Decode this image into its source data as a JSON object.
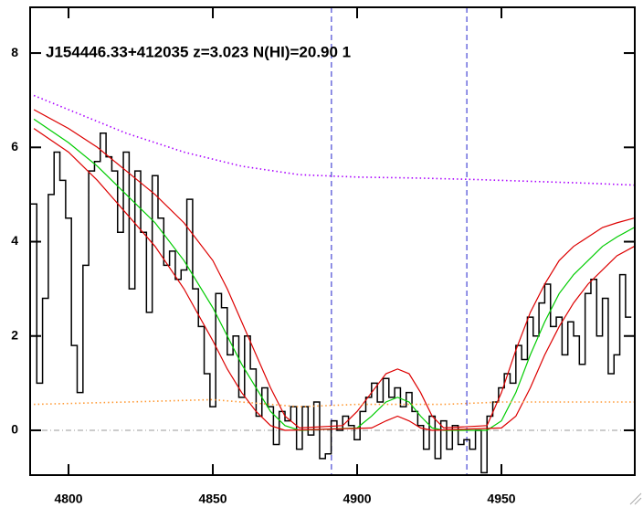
{
  "chart_data": {
    "type": "line",
    "title": "J154446.33+412035 z=3.023 N(HI)=20.90 1",
    "xlim": [
      4786.7,
      4996.2
    ],
    "ylim": [
      -0.95,
      8.97
    ],
    "xticks": [
      4800,
      4850,
      4900,
      4950
    ],
    "yticks": [
      0,
      2,
      4,
      6,
      8
    ],
    "hlines": [
      0
    ],
    "hline_color": "#999999",
    "vlines": [
      4891.1,
      4938.0
    ],
    "vline_color": "#2222cc",
    "series": [
      {
        "color": "#000000",
        "style": "step",
        "x": [
          4788,
          4790,
          4792,
          4794,
          4796,
          4798,
          4800,
          4802,
          4804,
          4806,
          4808,
          4810,
          4812,
          4814,
          4816,
          4818,
          4820,
          4822,
          4824,
          4826,
          4828,
          4830,
          4832,
          4834,
          4836,
          4838,
          4840,
          4842,
          4844,
          4846,
          4848,
          4850,
          4852,
          4854,
          4856,
          4858,
          4860,
          4862,
          4864,
          4866,
          4868,
          4870,
          4872,
          4874,
          4876,
          4878,
          4880,
          4882,
          4884,
          4886,
          4888,
          4890,
          4892,
          4894,
          4896,
          4898,
          4900,
          4902,
          4904,
          4906,
          4908,
          4910,
          4912,
          4914,
          4916,
          4918,
          4920,
          4922,
          4924,
          4926,
          4928,
          4930,
          4932,
          4934,
          4936,
          4938,
          4940,
          4942,
          4944,
          4946,
          4948,
          4950,
          4952,
          4954,
          4956,
          4958,
          4960,
          4962,
          4964,
          4966,
          4968,
          4970,
          4972,
          4974,
          4976,
          4978,
          4980,
          4982,
          4984,
          4986,
          4988,
          4990,
          4992,
          4994
        ],
        "values": [
          4.8,
          1.0,
          2.8,
          5.0,
          5.9,
          5.3,
          4.5,
          1.8,
          0.8,
          3.5,
          5.5,
          5.7,
          6.3,
          5.8,
          5.5,
          4.2,
          5.9,
          3.0,
          5.5,
          4.2,
          2.5,
          5.4,
          4.5,
          3.5,
          3.8,
          3.2,
          3.4,
          4.9,
          3.0,
          2.2,
          1.2,
          0.5,
          2.9,
          2.6,
          1.6,
          2.0,
          0.7,
          2.0,
          1.3,
          0.3,
          0.9,
          0.5,
          -0.3,
          0.4,
          0.2,
          0.5,
          -0.4,
          0.5,
          -0.1,
          0.6,
          -0.6,
          -0.5,
          0.2,
          0.0,
          0.3,
          0.1,
          -0.2,
          0.4,
          0.7,
          1.0,
          0.6,
          1.1,
          0.7,
          0.9,
          0.5,
          0.8,
          0.4,
          0.1,
          -0.4,
          0.3,
          -0.6,
          0.2,
          -0.4,
          0.1,
          -0.3,
          -0.2,
          -0.4,
          0.0,
          -0.9,
          0.3,
          0.6,
          0.9,
          1.2,
          1.0,
          1.8,
          1.5,
          2.4,
          2.0,
          2.7,
          3.1,
          2.2,
          2.4,
          1.6,
          2.3,
          2.0,
          1.4,
          2.9,
          3.2,
          2.0,
          2.8,
          1.2,
          1.6,
          3.3,
          2.4
        ]
      },
      {
        "color": "#00cc00",
        "style": "solid",
        "x": [
          4788,
          4800,
          4810,
          4820,
          4830,
          4840,
          4850,
          4860,
          4865,
          4870,
          4875,
          4880,
          4900,
          4905,
          4910,
          4914,
          4918,
          4922,
          4926,
          4930,
          4945,
          4950,
          4955,
          4960,
          4965,
          4970,
          4975,
          4980,
          4985,
          4990,
          4996
        ],
        "values": [
          6.6,
          6.1,
          5.6,
          5.0,
          4.4,
          3.6,
          2.6,
          1.4,
          0.9,
          0.4,
          0.1,
          0.0,
          0.05,
          0.3,
          0.6,
          0.7,
          0.6,
          0.3,
          0.05,
          0,
          0,
          0.2,
          0.8,
          1.6,
          2.3,
          2.9,
          3.3,
          3.6,
          3.9,
          4.1,
          4.3
        ]
      },
      {
        "color": "#dd0000",
        "style": "solid",
        "x": [
          4788,
          4800,
          4810,
          4820,
          4830,
          4840,
          4850,
          4855,
          4860,
          4865,
          4870,
          4875,
          4880,
          4895,
          4900,
          4905,
          4910,
          4914,
          4918,
          4922,
          4926,
          4930,
          4945,
          4950,
          4955,
          4960,
          4965,
          4970,
          4975,
          4980,
          4985,
          4990,
          4996
        ],
        "values": [
          6.8,
          6.4,
          6.0,
          5.5,
          5.0,
          4.4,
          3.6,
          3.0,
          2.3,
          1.6,
          0.9,
          0.3,
          0.05,
          0.1,
          0.4,
          0.8,
          1.2,
          1.3,
          1.2,
          0.8,
          0.3,
          0.05,
          0.1,
          0.8,
          1.7,
          2.5,
          3.1,
          3.6,
          3.9,
          4.1,
          4.3,
          4.4,
          4.5
        ]
      },
      {
        "color": "#dd0000",
        "style": "solid",
        "x": [
          4788,
          4800,
          4810,
          4820,
          4830,
          4840,
          4850,
          4855,
          4860,
          4865,
          4870,
          4875,
          4905,
          4910,
          4914,
          4918,
          4922,
          4926,
          4950,
          4955,
          4960,
          4965,
          4970,
          4975,
          4980,
          4985,
          4990,
          4996
        ],
        "values": [
          6.4,
          5.9,
          5.3,
          4.6,
          3.9,
          3.0,
          1.9,
          1.3,
          0.8,
          0.4,
          0.1,
          0.0,
          0.05,
          0.2,
          0.3,
          0.2,
          0.05,
          0,
          0.05,
          0.3,
          0.9,
          1.6,
          2.2,
          2.7,
          3.1,
          3.4,
          3.7,
          3.9
        ]
      },
      {
        "color": "#aa00ff",
        "style": "dotted",
        "x": [
          4788,
          4800,
          4820,
          4840,
          4860,
          4880,
          4900,
          4920,
          4940,
          4960,
          4980,
          4996
        ],
        "values": [
          7.1,
          6.8,
          6.3,
          5.9,
          5.6,
          5.42,
          5.37,
          5.35,
          5.32,
          5.28,
          5.24,
          5.2
        ]
      },
      {
        "color": "#ff9933",
        "style": "dotted",
        "x": [
          4788,
          4820,
          4850,
          4880,
          4900,
          4930,
          4950,
          4970,
          4996
        ],
        "values": [
          0.55,
          0.6,
          0.65,
          0.5,
          0.55,
          0.55,
          0.6,
          0.6,
          0.6
        ]
      }
    ]
  }
}
